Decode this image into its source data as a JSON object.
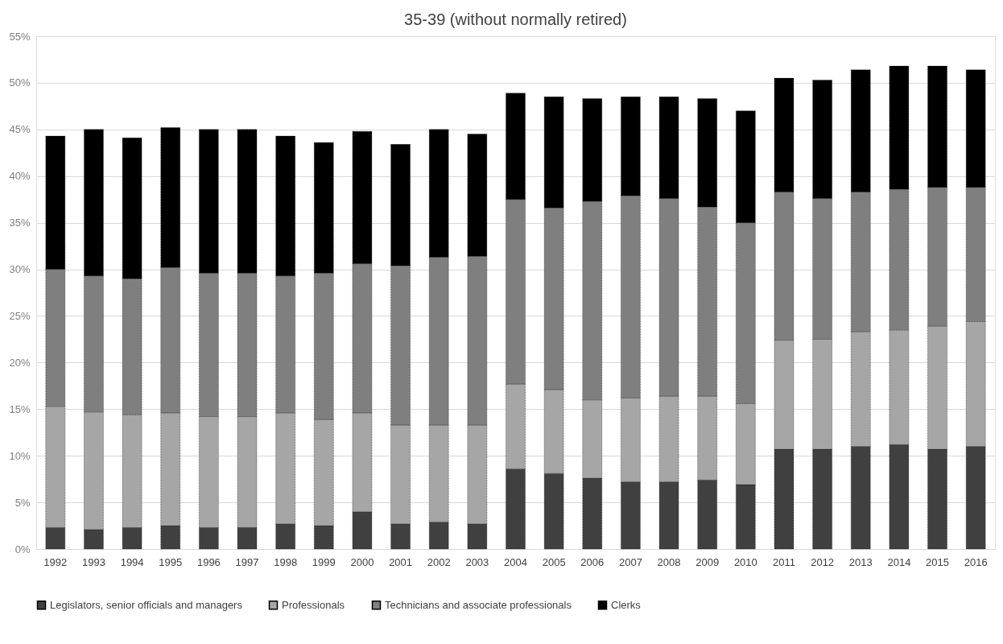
{
  "chart_data": {
    "type": "bar",
    "title": "35-39 (without normally retired)",
    "stacked": true,
    "categories": [
      "1992",
      "1993",
      "1994",
      "1995",
      "1996",
      "1997",
      "1998",
      "1999",
      "2000",
      "2001",
      "2002",
      "2003",
      "2004",
      "2005",
      "2006",
      "2007",
      "2008",
      "2009",
      "2010",
      "2011",
      "2012",
      "2013",
      "2014",
      "2015",
      "2016"
    ],
    "series": [
      {
        "name": "Legislators, senior officials and managers",
        "color": "#404040",
        "values": [
          2.3,
          2.1,
          2.3,
          2.5,
          2.3,
          2.3,
          2.7,
          2.5,
          4.0,
          2.7,
          2.9,
          2.7,
          8.6,
          8.1,
          7.6,
          7.2,
          7.2,
          7.4,
          6.9,
          10.7,
          10.7,
          11.0,
          11.2,
          10.7,
          11.0
        ]
      },
      {
        "name": "Professionals",
        "color": "#a6a6a6",
        "values": [
          13.0,
          12.6,
          12.1,
          12.1,
          11.9,
          11.9,
          11.9,
          11.4,
          10.6,
          10.6,
          10.4,
          10.6,
          9.1,
          9.0,
          8.4,
          9.0,
          9.2,
          9.0,
          8.7,
          11.7,
          11.8,
          12.3,
          12.3,
          13.2,
          13.4
        ]
      },
      {
        "name": "Technicians and associate professionals",
        "color": "#7f7f7f",
        "values": [
          14.7,
          14.6,
          14.6,
          15.6,
          15.4,
          15.4,
          14.7,
          15.7,
          16.0,
          17.1,
          18.0,
          18.1,
          19.8,
          19.5,
          21.3,
          21.7,
          21.2,
          20.3,
          19.4,
          15.9,
          15.1,
          15.0,
          15.1,
          14.9,
          14.4
        ]
      },
      {
        "name": "Clerks",
        "color": "#000000",
        "values": [
          14.3,
          15.7,
          15.1,
          15.0,
          15.4,
          15.4,
          15.0,
          14.0,
          14.2,
          13.0,
          13.7,
          13.1,
          11.4,
          11.9,
          11.0,
          10.6,
          10.9,
          11.6,
          12.0,
          12.2,
          12.7,
          13.1,
          13.2,
          13.0,
          12.6
        ]
      }
    ],
    "ylim": [
      0,
      55
    ],
    "yticks": [
      {
        "value": 0,
        "label": "0%"
      },
      {
        "value": 5,
        "label": "5%"
      },
      {
        "value": 10,
        "label": "10%"
      },
      {
        "value": 15,
        "label": "15%"
      },
      {
        "value": 20,
        "label": "20%"
      },
      {
        "value": 25,
        "label": "25%"
      },
      {
        "value": 30,
        "label": "30%"
      },
      {
        "value": 35,
        "label": "35%"
      },
      {
        "value": 40,
        "label": "40%"
      },
      {
        "value": 45,
        "label": "45%"
      },
      {
        "value": 50,
        "label": "50%"
      },
      {
        "value": 55,
        "label": "55%"
      }
    ],
    "grid": "y",
    "legend": "bottom"
  }
}
